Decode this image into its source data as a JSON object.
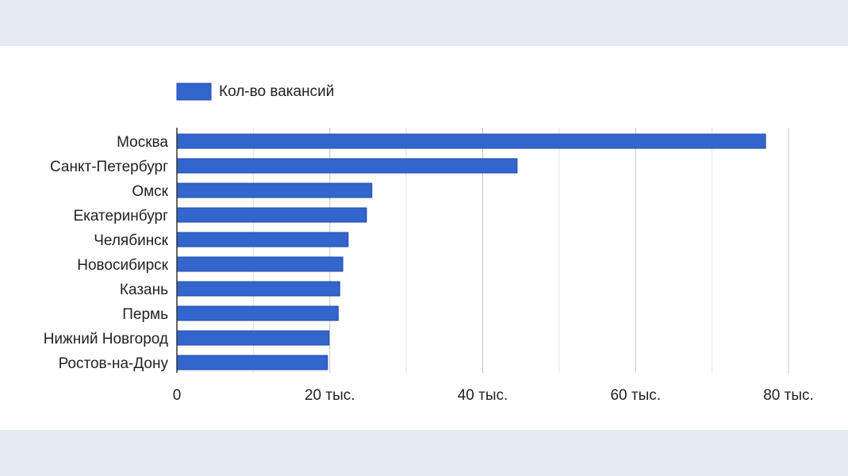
{
  "chart_data": {
    "type": "bar",
    "orientation": "horizontal",
    "categories": [
      "Москва",
      "Санкт-Петербург",
      "Омск",
      "Екатеринбург",
      "Челябинск",
      "Новосибирск",
      "Казань",
      "Пермь",
      "Нижний Новгород",
      "Ростов-на-Дону"
    ],
    "series": [
      {
        "name": "Кол-во вакансий",
        "color": "#3366cc",
        "values": [
          77000,
          44500,
          25500,
          24800,
          22400,
          21700,
          21300,
          21100,
          19900,
          19700
        ]
      }
    ],
    "xlim": [
      0,
      80000
    ],
    "xticks": [
      {
        "value": 0,
        "label": "0"
      },
      {
        "value": 20000,
        "label": "20 тыс."
      },
      {
        "value": 40000,
        "label": "40 тыс."
      },
      {
        "value": 60000,
        "label": "60 тыс."
      },
      {
        "value": 80000,
        "label": "80 тыс."
      }
    ],
    "minor_grid_step": 10000,
    "grid": true,
    "legend_position": "top-left"
  }
}
